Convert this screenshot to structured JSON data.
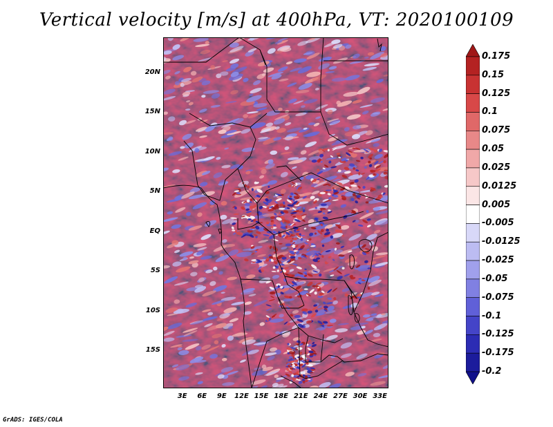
{
  "title": "Vertical velocity [m/s] at 400hPa, VT: 2020100109",
  "credit": "GrADS: IGES/COLA",
  "map": {
    "latitude_labels": [
      "20N",
      "15N",
      "10N",
      "5N",
      "EQ",
      "5S",
      "10S",
      "15S"
    ],
    "longitude_labels": [
      "3E",
      "6E",
      "9E",
      "12E",
      "15E",
      "18E",
      "21E",
      "24E",
      "27E",
      "30E",
      "33E"
    ],
    "lat_values": [
      20,
      15,
      10,
      5,
      0,
      -5,
      -10,
      -15
    ],
    "lon_values": [
      3,
      6,
      9,
      12,
      15,
      18,
      21,
      24,
      27,
      30,
      33
    ],
    "lat_range": [
      -19.7,
      24.5
    ],
    "lon_range": [
      0.1,
      34.3
    ]
  },
  "colorbar": {
    "labels": [
      "0.175",
      "0.15",
      "0.125",
      "0.1",
      "0.075",
      "0.05",
      "0.025",
      "0.0125",
      "0.005",
      "-0.005",
      "-0.0125",
      "-0.025",
      "-0.05",
      "-0.075",
      "-0.1",
      "-0.125",
      "-0.175",
      "-0.2"
    ],
    "colors": [
      "#a01818",
      "#b42222",
      "#c83232",
      "#d84848",
      "#e06868",
      "#e88888",
      "#f0a8a8",
      "#f6c8c8",
      "#fbe6e6",
      "#ffffff",
      "#d8d8f8",
      "#bcbcf2",
      "#a0a0ec",
      "#8080e2",
      "#6060d8",
      "#4444c8",
      "#2c2cb4",
      "#1c1c9c",
      "#10108a"
    ]
  }
}
